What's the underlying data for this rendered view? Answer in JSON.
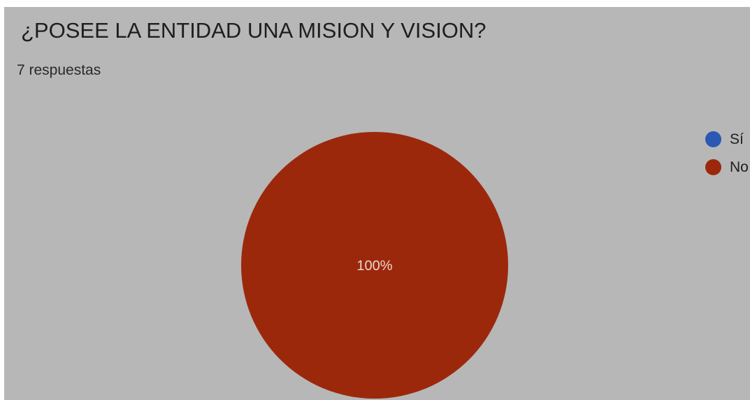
{
  "header": {
    "title": "¿POSEE LA ENTIDAD UNA MISION Y VISION?",
    "subtitle": "7 respuestas"
  },
  "chart_data": {
    "type": "pie",
    "title": "¿POSEE LA ENTIDAD UNA MISION Y VISION?",
    "subtitle": "7 respuestas",
    "total_responses": 7,
    "slices": [
      {
        "label": "Sí",
        "value": 0,
        "percent": 0,
        "color": "#2a58b2"
      },
      {
        "label": "No",
        "value": 7,
        "percent": 100,
        "color": "#9c280b"
      }
    ],
    "data_labels": [
      "100%"
    ],
    "legend_position": "right",
    "slice_label_color": "#e8d6cf"
  }
}
